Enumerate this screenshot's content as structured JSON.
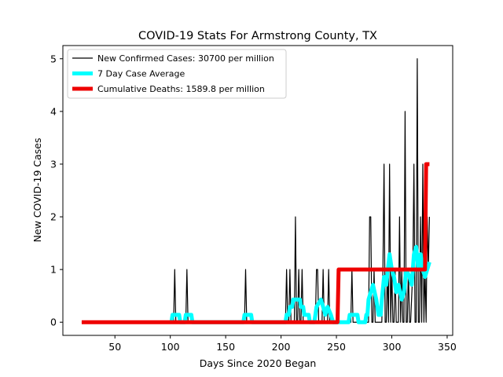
{
  "chart_data": {
    "type": "line",
    "title": "COVID-19 Stats For Armstrong County, TX",
    "xlabel": "Days Since 2020 Began",
    "ylabel": "New COVID-19 Cases",
    "xlim": [
      3,
      355
    ],
    "ylim": [
      -0.25,
      5.25
    ],
    "xticks": [
      50,
      100,
      150,
      200,
      250,
      300,
      350
    ],
    "yticks": [
      0,
      1,
      2,
      3,
      4,
      5
    ],
    "grid": false,
    "legend_position": "top-left",
    "series": [
      {
        "name": "New Confirmed Cases: 30700 per million",
        "color": "#000000",
        "points": [
          [
            20,
            0
          ],
          [
            103,
            0
          ],
          [
            104,
            1
          ],
          [
            105,
            0
          ],
          [
            114,
            0
          ],
          [
            115,
            1
          ],
          [
            116,
            0
          ],
          [
            167,
            0
          ],
          [
            168,
            1
          ],
          [
            169,
            0
          ],
          [
            204,
            0
          ],
          [
            205,
            1
          ],
          [
            206,
            0
          ],
          [
            207,
            0
          ],
          [
            208,
            1
          ],
          [
            209,
            0
          ],
          [
            212,
            0
          ],
          [
            213,
            2
          ],
          [
            214,
            0
          ],
          [
            215,
            0
          ],
          [
            216,
            1
          ],
          [
            217,
            0
          ],
          [
            218,
            0
          ],
          [
            219,
            1
          ],
          [
            220,
            0
          ],
          [
            231,
            0
          ],
          [
            232,
            1
          ],
          [
            233,
            1
          ],
          [
            234,
            0
          ],
          [
            237,
            0
          ],
          [
            238,
            1
          ],
          [
            239,
            0
          ],
          [
            242,
            0
          ],
          [
            243,
            1
          ],
          [
            244,
            0
          ],
          [
            262,
            0
          ],
          [
            263,
            0
          ],
          [
            264,
            1
          ],
          [
            265,
            0
          ],
          [
            278,
            0
          ],
          [
            279,
            0
          ],
          [
            280,
            2
          ],
          [
            281,
            2
          ],
          [
            282,
            0
          ],
          [
            283,
            0
          ],
          [
            284,
            1
          ],
          [
            285,
            0
          ],
          [
            291,
            0
          ],
          [
            292,
            1
          ],
          [
            293,
            3
          ],
          [
            294,
            0
          ],
          [
            295,
            0
          ],
          [
            296,
            1
          ],
          [
            297,
            0
          ],
          [
            298,
            3
          ],
          [
            299,
            0
          ],
          [
            300,
            1
          ],
          [
            301,
            0
          ],
          [
            302,
            0
          ],
          [
            303,
            1
          ],
          [
            304,
            0
          ],
          [
            306,
            0
          ],
          [
            307,
            2
          ],
          [
            308,
            0
          ],
          [
            309,
            1
          ],
          [
            310,
            0
          ],
          [
            311,
            0
          ],
          [
            312,
            4
          ],
          [
            313,
            0
          ],
          [
            314,
            0
          ],
          [
            315,
            1
          ],
          [
            316,
            0
          ],
          [
            317,
            0
          ],
          [
            319,
            1
          ],
          [
            320,
            3
          ],
          [
            321,
            0
          ],
          [
            322,
            0
          ],
          [
            323,
            5
          ],
          [
            324,
            0
          ],
          [
            325,
            0
          ],
          [
            326,
            2
          ],
          [
            327,
            0
          ],
          [
            328,
            3
          ],
          [
            329,
            0
          ],
          [
            330,
            1
          ],
          [
            331,
            0
          ],
          [
            332,
            2
          ],
          [
            333,
            1
          ],
          [
            334,
            2
          ]
        ]
      },
      {
        "name": "7 Day Case Average",
        "color": "#00ffff",
        "points": [
          [
            101,
            0
          ],
          [
            102,
            0.14
          ],
          [
            108,
            0.14
          ],
          [
            109,
            0
          ],
          [
            113,
            0
          ],
          [
            114,
            0.14
          ],
          [
            119,
            0.14
          ],
          [
            120,
            0
          ],
          [
            166,
            0
          ],
          [
            167,
            0.14
          ],
          [
            173,
            0.14
          ],
          [
            174,
            0
          ],
          [
            204,
            0
          ],
          [
            205,
            0.14
          ],
          [
            207,
            0.14
          ],
          [
            208,
            0.29
          ],
          [
            210,
            0.29
          ],
          [
            211,
            0.43
          ],
          [
            217,
            0.43
          ],
          [
            218,
            0.29
          ],
          [
            220,
            0.29
          ],
          [
            221,
            0.14
          ],
          [
            225,
            0.14
          ],
          [
            226,
            0
          ],
          [
            230,
            0
          ],
          [
            231,
            0.14
          ],
          [
            232,
            0.29
          ],
          [
            236,
            0.43
          ],
          [
            238,
            0.29
          ],
          [
            240,
            0.14
          ],
          [
            242,
            0.29
          ],
          [
            245,
            0.14
          ],
          [
            247,
            0
          ],
          [
            261,
            0
          ],
          [
            262,
            0.14
          ],
          [
            269,
            0.14
          ],
          [
            270,
            0
          ],
          [
            276,
            0
          ],
          [
            277,
            0.14
          ],
          [
            278,
            0.14
          ],
          [
            279,
            0.43
          ],
          [
            281,
            0.57
          ],
          [
            283,
            0.71
          ],
          [
            286,
            0.43
          ],
          [
            288,
            0.14
          ],
          [
            290,
            0.14
          ],
          [
            291,
            0.43
          ],
          [
            293,
            0.86
          ],
          [
            295,
            0.71
          ],
          [
            298,
            1.29
          ],
          [
            300,
            1.0
          ],
          [
            302,
            0.86
          ],
          [
            304,
            0.57
          ],
          [
            306,
            0.71
          ],
          [
            309,
            0.43
          ],
          [
            311,
            0.57
          ],
          [
            313,
            1.0
          ],
          [
            316,
            0.86
          ],
          [
            318,
            0.71
          ],
          [
            320,
            1.29
          ],
          [
            322,
            1.43
          ],
          [
            324,
            1.0
          ],
          [
            326,
            1.29
          ],
          [
            328,
            1.0
          ],
          [
            330,
            0.86
          ],
          [
            332,
            1.0
          ],
          [
            334,
            1.14
          ]
        ]
      },
      {
        "name": "Cumulative Deaths: 1589.8 per million",
        "color": "#ee0000",
        "points": [
          [
            20,
            0
          ],
          [
            251,
            0
          ],
          [
            252,
            1
          ],
          [
            330,
            1
          ],
          [
            331,
            3
          ],
          [
            334,
            3
          ]
        ]
      }
    ]
  }
}
